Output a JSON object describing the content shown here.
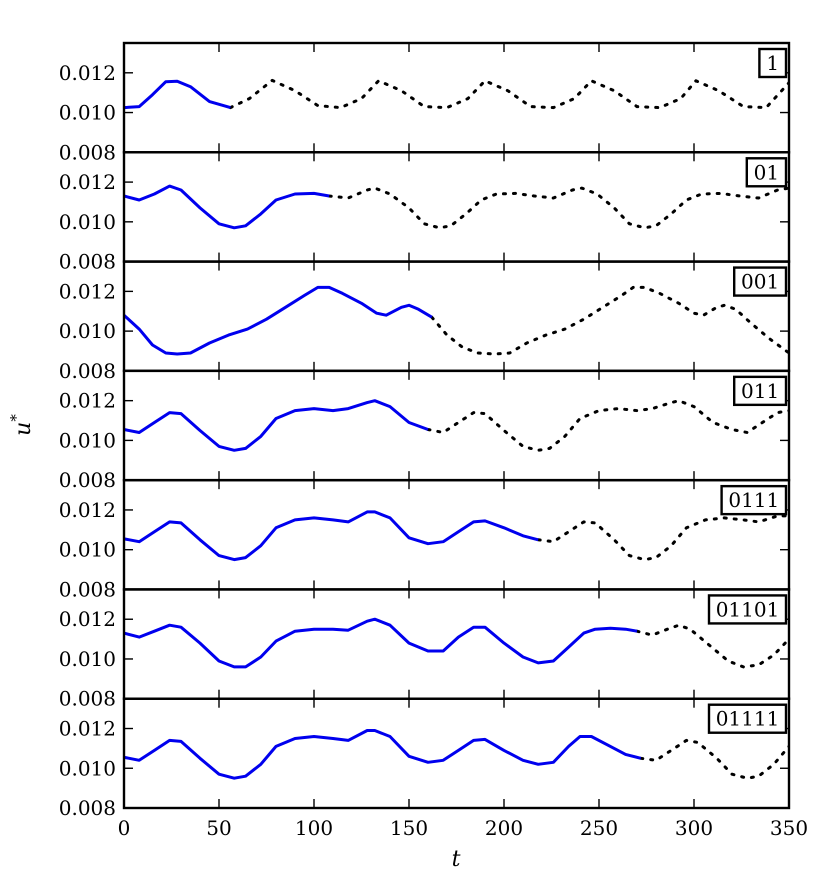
{
  "chart_data": {
    "type": "line",
    "xlabel": "t",
    "ylabel": "u",
    "ylabel_superscript": "*",
    "xlim": [
      0,
      350
    ],
    "ylim": [
      0.008,
      0.0135
    ],
    "x_ticks": [
      0,
      50,
      100,
      150,
      200,
      250,
      300,
      350
    ],
    "x_tick_labels": [
      "0",
      "50",
      "100",
      "150",
      "200",
      "250",
      "300",
      "350"
    ],
    "y_ticks": [
      0.008,
      0.01,
      0.012
    ],
    "y_tick_labels": [
      "0.008",
      "0.010",
      "0.012"
    ],
    "grid": false,
    "solid_color": "#0000ee",
    "dotted_color": "#000000",
    "panels": [
      {
        "tag": "1",
        "solid": [
          [
            0,
            0.01025
          ],
          [
            8,
            0.0103
          ],
          [
            15,
            0.0109
          ],
          [
            22,
            0.01155
          ],
          [
            28,
            0.01158
          ],
          [
            35,
            0.0113
          ],
          [
            45,
            0.01055
          ],
          [
            56,
            0.01025
          ]
        ],
        "dotted": [
          [
            56,
            0.01025
          ],
          [
            66,
            0.0107
          ],
          [
            78,
            0.01162
          ],
          [
            90,
            0.0111
          ],
          [
            102,
            0.01035
          ],
          [
            114,
            0.01025
          ],
          [
            125,
            0.0107
          ],
          [
            134,
            0.0116
          ],
          [
            146,
            0.0111
          ],
          [
            158,
            0.0103
          ],
          [
            170,
            0.01025
          ],
          [
            181,
            0.0107
          ],
          [
            190,
            0.0116
          ],
          [
            202,
            0.0111
          ],
          [
            214,
            0.0103
          ],
          [
            226,
            0.01025
          ],
          [
            237,
            0.0107
          ],
          [
            246,
            0.0116
          ],
          [
            258,
            0.0111
          ],
          [
            270,
            0.0103
          ],
          [
            282,
            0.01025
          ],
          [
            293,
            0.0107
          ],
          [
            301,
            0.0116
          ],
          [
            313,
            0.0111
          ],
          [
            326,
            0.0103
          ],
          [
            338,
            0.01025
          ],
          [
            350,
            0.0115
          ]
        ]
      },
      {
        "tag": "01",
        "solid": [
          [
            0,
            0.0113
          ],
          [
            8,
            0.0111
          ],
          [
            16,
            0.0114
          ],
          [
            24,
            0.0118
          ],
          [
            30,
            0.0116
          ],
          [
            40,
            0.0107
          ],
          [
            50,
            0.0099
          ],
          [
            58,
            0.0097
          ],
          [
            64,
            0.0098
          ],
          [
            72,
            0.0104
          ],
          [
            80,
            0.0111
          ],
          [
            90,
            0.0114
          ],
          [
            100,
            0.01143
          ],
          [
            108,
            0.0113
          ]
        ],
        "dotted": [
          [
            108,
            0.0113
          ],
          [
            118,
            0.0112
          ],
          [
            128,
            0.0116
          ],
          [
            132,
            0.0117
          ],
          [
            140,
            0.0114
          ],
          [
            150,
            0.0107
          ],
          [
            158,
            0.0099
          ],
          [
            166,
            0.0097
          ],
          [
            172,
            0.0098
          ],
          [
            180,
            0.0104
          ],
          [
            188,
            0.0111
          ],
          [
            196,
            0.0114
          ],
          [
            206,
            0.01143
          ],
          [
            216,
            0.0113
          ],
          [
            226,
            0.0112
          ],
          [
            236,
            0.0116
          ],
          [
            241,
            0.0117
          ],
          [
            249,
            0.0114
          ],
          [
            258,
            0.0107
          ],
          [
            266,
            0.0099
          ],
          [
            274,
            0.0097
          ],
          [
            280,
            0.0098
          ],
          [
            288,
            0.0104
          ],
          [
            296,
            0.0111
          ],
          [
            304,
            0.0114
          ],
          [
            314,
            0.01143
          ],
          [
            324,
            0.0113
          ],
          [
            334,
            0.0112
          ],
          [
            344,
            0.0116
          ],
          [
            350,
            0.0117
          ]
        ]
      },
      {
        "tag": "001",
        "solid": [
          [
            0,
            0.0108
          ],
          [
            8,
            0.0101
          ],
          [
            15,
            0.0093
          ],
          [
            22,
            0.0089
          ],
          [
            28,
            0.00885
          ],
          [
            35,
            0.0089
          ],
          [
            45,
            0.0094
          ],
          [
            55,
            0.0098
          ],
          [
            65,
            0.0101
          ],
          [
            75,
            0.0106
          ],
          [
            85,
            0.0112
          ],
          [
            95,
            0.0118
          ],
          [
            102,
            0.0122
          ],
          [
            108,
            0.0122
          ],
          [
            115,
            0.0119
          ],
          [
            125,
            0.0114
          ],
          [
            133,
            0.0109
          ],
          [
            138,
            0.0108
          ],
          [
            146,
            0.0112
          ],
          [
            150,
            0.0113
          ],
          [
            155,
            0.0111
          ],
          [
            162,
            0.0107
          ]
        ],
        "dotted": [
          [
            162,
            0.0107
          ],
          [
            170,
            0.0098
          ],
          [
            178,
            0.0092
          ],
          [
            186,
            0.0089
          ],
          [
            195,
            0.00885
          ],
          [
            203,
            0.0089
          ],
          [
            212,
            0.0094
          ],
          [
            222,
            0.0098
          ],
          [
            232,
            0.0101
          ],
          [
            242,
            0.0106
          ],
          [
            252,
            0.0112
          ],
          [
            262,
            0.0118
          ],
          [
            268,
            0.0122
          ],
          [
            274,
            0.0122
          ],
          [
            282,
            0.0119
          ],
          [
            292,
            0.0114
          ],
          [
            300,
            0.0109
          ],
          [
            305,
            0.0108
          ],
          [
            312,
            0.0112
          ],
          [
            316,
            0.0113
          ],
          [
            322,
            0.0111
          ],
          [
            330,
            0.0104
          ],
          [
            340,
            0.0096
          ],
          [
            350,
            0.0089
          ]
        ]
      },
      {
        "tag": "011",
        "solid": [
          [
            0,
            0.01055
          ],
          [
            8,
            0.0104
          ],
          [
            16,
            0.0109
          ],
          [
            24,
            0.0114
          ],
          [
            30,
            0.01135
          ],
          [
            40,
            0.0105
          ],
          [
            50,
            0.0097
          ],
          [
            58,
            0.0095
          ],
          [
            64,
            0.0096
          ],
          [
            72,
            0.0102
          ],
          [
            80,
            0.0111
          ],
          [
            90,
            0.0115
          ],
          [
            100,
            0.0116
          ],
          [
            110,
            0.0115
          ],
          [
            118,
            0.0116
          ],
          [
            128,
            0.0119
          ],
          [
            132,
            0.012
          ],
          [
            140,
            0.0117
          ],
          [
            150,
            0.0109
          ],
          [
            160,
            0.01055
          ]
        ],
        "dotted": [
          [
            160,
            0.01055
          ],
          [
            168,
            0.0104
          ],
          [
            176,
            0.0109
          ],
          [
            184,
            0.0114
          ],
          [
            190,
            0.01135
          ],
          [
            200,
            0.0105
          ],
          [
            210,
            0.0097
          ],
          [
            218,
            0.0095
          ],
          [
            224,
            0.0096
          ],
          [
            232,
            0.0102
          ],
          [
            240,
            0.0111
          ],
          [
            250,
            0.0115
          ],
          [
            260,
            0.0116
          ],
          [
            270,
            0.0115
          ],
          [
            278,
            0.0116
          ],
          [
            288,
            0.0119
          ],
          [
            292,
            0.012
          ],
          [
            300,
            0.0117
          ],
          [
            310,
            0.0109
          ],
          [
            320,
            0.01055
          ],
          [
            328,
            0.0104
          ],
          [
            336,
            0.0109
          ],
          [
            344,
            0.0114
          ],
          [
            350,
            0.0115
          ]
        ]
      },
      {
        "tag": "0111",
        "solid": [
          [
            0,
            0.01055
          ],
          [
            8,
            0.0104
          ],
          [
            16,
            0.0109
          ],
          [
            24,
            0.0114
          ],
          [
            30,
            0.01135
          ],
          [
            40,
            0.0105
          ],
          [
            50,
            0.0097
          ],
          [
            58,
            0.0095
          ],
          [
            64,
            0.0096
          ],
          [
            72,
            0.0102
          ],
          [
            80,
            0.0111
          ],
          [
            90,
            0.0115
          ],
          [
            100,
            0.0116
          ],
          [
            110,
            0.0115
          ],
          [
            118,
            0.0114
          ],
          [
            128,
            0.0119
          ],
          [
            132,
            0.0119
          ],
          [
            140,
            0.0116
          ],
          [
            150,
            0.0106
          ],
          [
            160,
            0.0103
          ],
          [
            168,
            0.0104
          ],
          [
            176,
            0.0109
          ],
          [
            184,
            0.0114
          ],
          [
            190,
            0.01145
          ],
          [
            200,
            0.0111
          ],
          [
            210,
            0.0107
          ],
          [
            218,
            0.0105
          ]
        ],
        "dotted": [
          [
            218,
            0.0105
          ],
          [
            226,
            0.0104
          ],
          [
            234,
            0.0109
          ],
          [
            242,
            0.0114
          ],
          [
            248,
            0.01135
          ],
          [
            258,
            0.0105
          ],
          [
            266,
            0.0097
          ],
          [
            274,
            0.0095
          ],
          [
            280,
            0.0096
          ],
          [
            288,
            0.0102
          ],
          [
            296,
            0.0111
          ],
          [
            306,
            0.0115
          ],
          [
            316,
            0.0116
          ],
          [
            326,
            0.0115
          ],
          [
            334,
            0.0114
          ],
          [
            344,
            0.0117
          ],
          [
            350,
            0.0117
          ]
        ]
      },
      {
        "tag": "01101",
        "solid": [
          [
            0,
            0.0113
          ],
          [
            8,
            0.0111
          ],
          [
            16,
            0.0114
          ],
          [
            24,
            0.0117
          ],
          [
            30,
            0.0116
          ],
          [
            40,
            0.0108
          ],
          [
            50,
            0.0099
          ],
          [
            58,
            0.0096
          ],
          [
            64,
            0.0096
          ],
          [
            72,
            0.0101
          ],
          [
            80,
            0.0109
          ],
          [
            90,
            0.0114
          ],
          [
            100,
            0.0115
          ],
          [
            110,
            0.0115
          ],
          [
            118,
            0.01145
          ],
          [
            128,
            0.0119
          ],
          [
            132,
            0.012
          ],
          [
            140,
            0.0117
          ],
          [
            150,
            0.0108
          ],
          [
            160,
            0.0104
          ],
          [
            168,
            0.0104
          ],
          [
            176,
            0.0111
          ],
          [
            184,
            0.0116
          ],
          [
            190,
            0.0116
          ],
          [
            200,
            0.0108
          ],
          [
            210,
            0.0101
          ],
          [
            218,
            0.0098
          ],
          [
            226,
            0.0099
          ],
          [
            234,
            0.0106
          ],
          [
            242,
            0.0113
          ],
          [
            248,
            0.0115
          ],
          [
            256,
            0.01155
          ],
          [
            264,
            0.0115
          ],
          [
            270,
            0.0114
          ]
        ],
        "dotted": [
          [
            270,
            0.0114
          ],
          [
            278,
            0.0112
          ],
          [
            286,
            0.0115
          ],
          [
            292,
            0.0117
          ],
          [
            298,
            0.0115
          ],
          [
            308,
            0.0107
          ],
          [
            318,
            0.0099
          ],
          [
            326,
            0.0096
          ],
          [
            334,
            0.0097
          ],
          [
            342,
            0.0102
          ],
          [
            350,
            0.011
          ]
        ]
      },
      {
        "tag": "01111",
        "solid": [
          [
            0,
            0.01055
          ],
          [
            8,
            0.0104
          ],
          [
            16,
            0.0109
          ],
          [
            24,
            0.0114
          ],
          [
            30,
            0.01135
          ],
          [
            40,
            0.0105
          ],
          [
            50,
            0.0097
          ],
          [
            58,
            0.0095
          ],
          [
            64,
            0.0096
          ],
          [
            72,
            0.0102
          ],
          [
            80,
            0.0111
          ],
          [
            90,
            0.0115
          ],
          [
            100,
            0.0116
          ],
          [
            110,
            0.0115
          ],
          [
            118,
            0.0114
          ],
          [
            128,
            0.0119
          ],
          [
            132,
            0.0119
          ],
          [
            140,
            0.0116
          ],
          [
            150,
            0.0106
          ],
          [
            160,
            0.0103
          ],
          [
            168,
            0.0104
          ],
          [
            176,
            0.0109
          ],
          [
            184,
            0.0114
          ],
          [
            190,
            0.01145
          ],
          [
            200,
            0.0109
          ],
          [
            210,
            0.0104
          ],
          [
            218,
            0.0102
          ],
          [
            226,
            0.0103
          ],
          [
            234,
            0.0111
          ],
          [
            240,
            0.0116
          ],
          [
            246,
            0.0116
          ],
          [
            256,
            0.0111
          ],
          [
            264,
            0.0107
          ],
          [
            272,
            0.0105
          ]
        ],
        "dotted": [
          [
            272,
            0.0105
          ],
          [
            280,
            0.0104
          ],
          [
            288,
            0.0109
          ],
          [
            296,
            0.0114
          ],
          [
            302,
            0.0113
          ],
          [
            312,
            0.0105
          ],
          [
            320,
            0.0097
          ],
          [
            328,
            0.0095
          ],
          [
            334,
            0.0096
          ],
          [
            342,
            0.0102
          ],
          [
            350,
            0.0111
          ]
        ]
      }
    ]
  }
}
